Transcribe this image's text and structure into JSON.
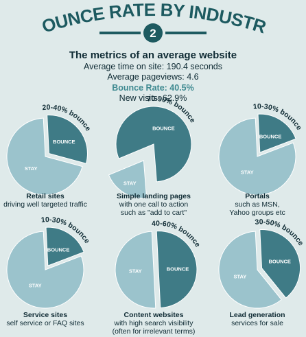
{
  "header": {
    "title": "BOUNCE RATE BY INDUSTRY",
    "badge_number": "2"
  },
  "metrics": {
    "heading": "The metrics of an average website",
    "time_on_site": "Average time on site: 190.4 seconds",
    "pageviews": "Average pageviews: 4.6",
    "bounce_rate": "Bounce Rate: 40.5%",
    "new_visits": "New visits: 62.9%"
  },
  "colors": {
    "background": "#dfeaea",
    "stay": "#9bc3cc",
    "bounce": "#3f7b86",
    "text": "#0f2b34",
    "accent": "#3f8a91"
  },
  "chart_data": [
    {
      "type": "pie",
      "range_label": "20-40% bounce",
      "title": "Retail sites",
      "subtitle": [
        "driving well targeted traffic"
      ],
      "slices": [
        {
          "label": "STAY",
          "value": 70
        },
        {
          "label": "BOUNCE",
          "value": 30
        }
      ]
    },
    {
      "type": "pie",
      "range_label": "70-90% bounce",
      "title": "Simple landing pages",
      "subtitle": [
        "with one call to action",
        "such as \"add to cart\""
      ],
      "slices": [
        {
          "label": "STAY",
          "value": 20
        },
        {
          "label": "BOUNCE",
          "value": 80
        }
      ]
    },
    {
      "type": "pie",
      "range_label": "10-30% bounce",
      "title": "Portals",
      "subtitle": [
        "such as MSN,",
        "Yahoo groups etc"
      ],
      "slices": [
        {
          "label": "STAY",
          "value": 80
        },
        {
          "label": "BOUNCE",
          "value": 20
        }
      ]
    },
    {
      "type": "pie",
      "range_label": "10-30% bounce",
      "title": "Service sites",
      "subtitle": [
        "self service or FAQ sites"
      ],
      "slices": [
        {
          "label": "STAY",
          "value": 80
        },
        {
          "label": "BOUNCE",
          "value": 20
        }
      ]
    },
    {
      "type": "pie",
      "range_label": "40-60% bounce",
      "title": "Content websites",
      "subtitle": [
        "with high search visibility",
        "(often for irrelevant terms)"
      ],
      "slices": [
        {
          "label": "STAY",
          "value": 50
        },
        {
          "label": "BOUNCE",
          "value": 50
        }
      ]
    },
    {
      "type": "pie",
      "range_label": "30-50% bounce",
      "title": "Lead generation",
      "subtitle": [
        "services for sale"
      ],
      "slices": [
        {
          "label": "STAY",
          "value": 60
        },
        {
          "label": "BOUNCE",
          "value": 40
        }
      ]
    }
  ]
}
